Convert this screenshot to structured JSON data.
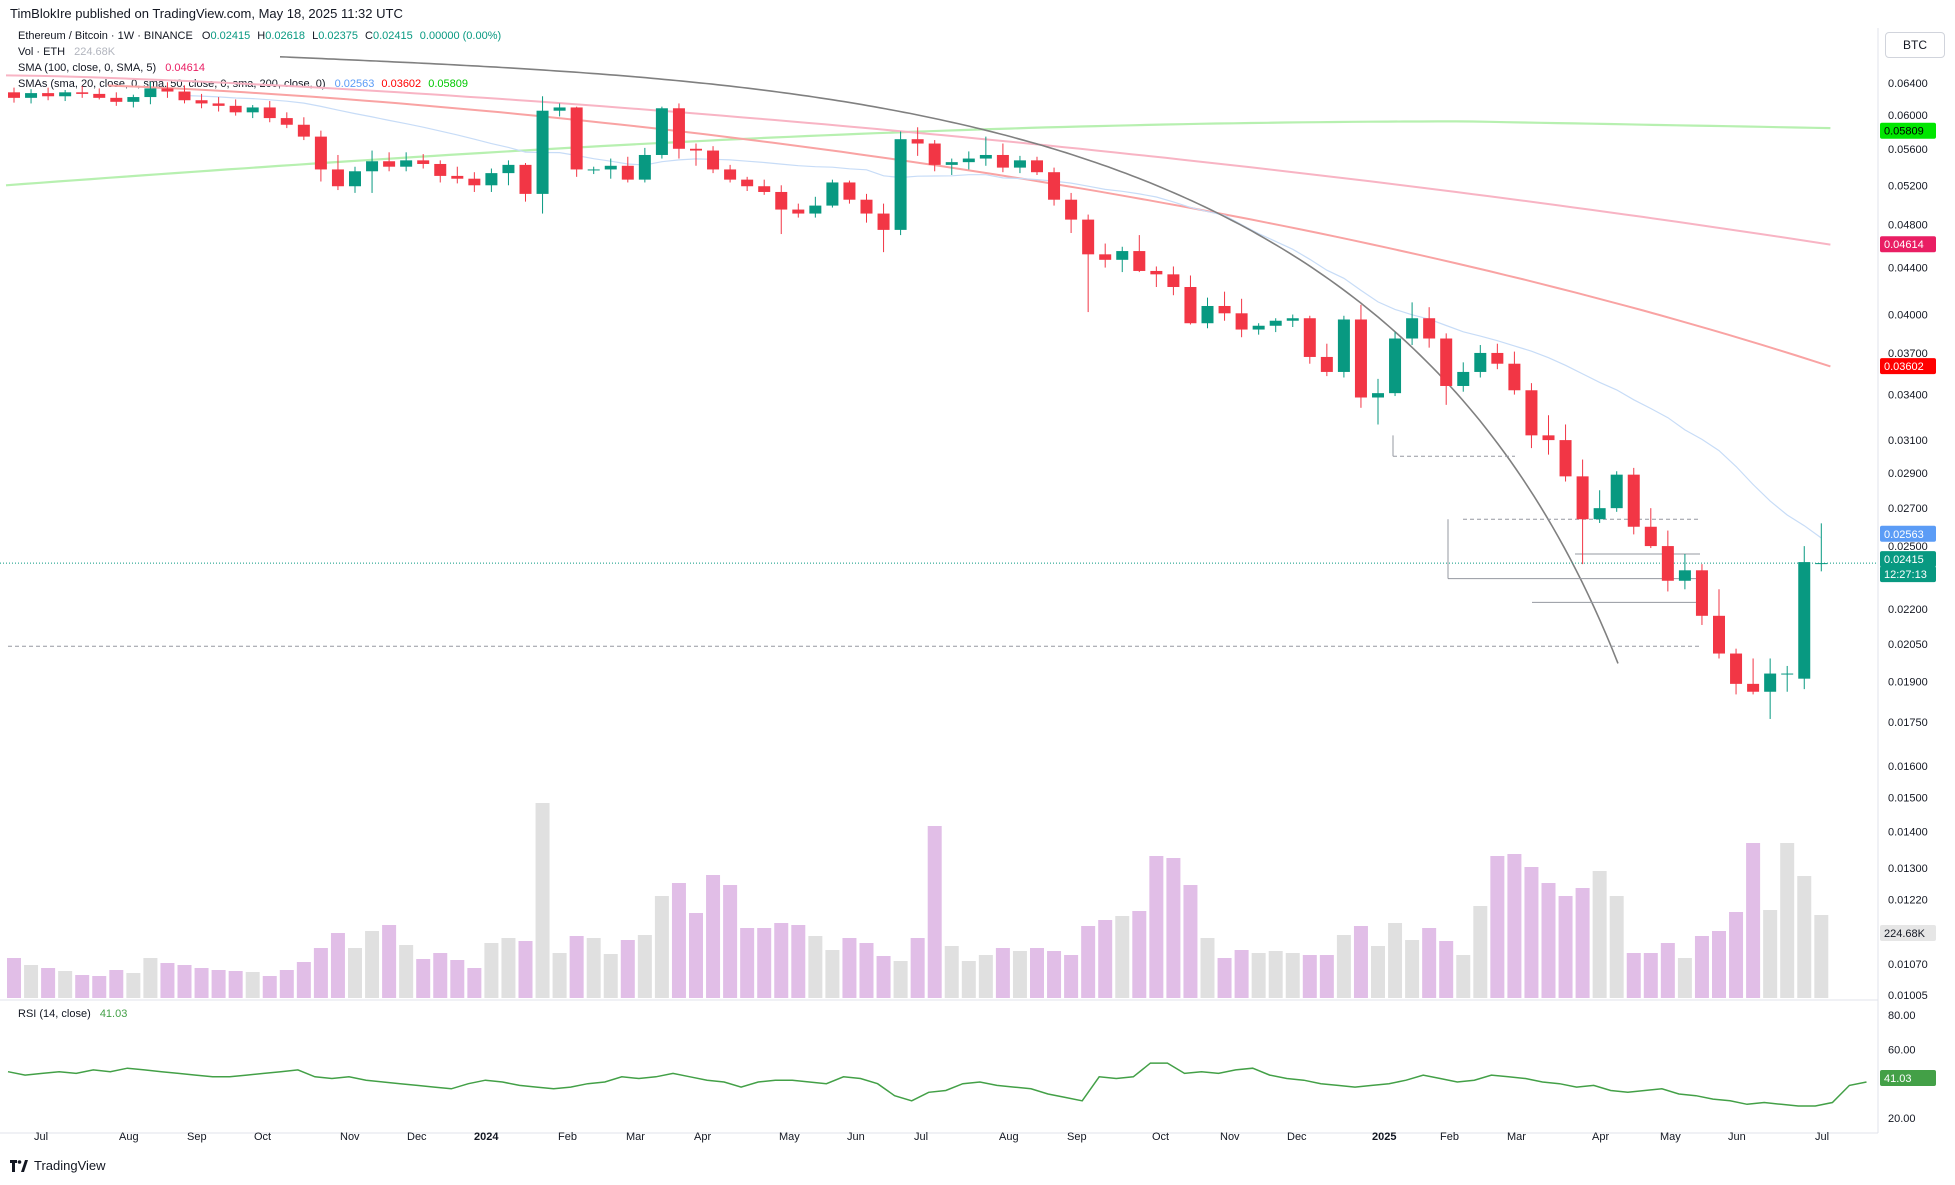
{
  "header": {
    "publish_line": "TimBlokIre published on TradingView.com, May 18, 2025 11:32 UTC"
  },
  "symbol": {
    "title": "Ethereum / Bitcoin · 1W · BINANCE",
    "o_label": "O",
    "o": "0.02415",
    "h_label": "H",
    "h": "0.02618",
    "l_label": "L",
    "l": "0.02375",
    "c_label": "C",
    "c": "0.02415",
    "change": "0.00000 (0.00%)"
  },
  "vol_legend": {
    "label": "Vol · ETH",
    "value": "224.68K"
  },
  "sma_legend": {
    "label": "SMA (100, close, 0, SMA, 5)",
    "value": "0.04614"
  },
  "smas_legend": {
    "label": "SMAs (sma, 20, close, 0, sma, 50, close, 0, sma, 200, close, 0)",
    "v1": "0.02563",
    "v2": "0.03602",
    "v3": "0.05809"
  },
  "rsi_legend": {
    "label": "RSI (14, close)",
    "value": "41.03"
  },
  "currency_button": "BTC",
  "watermark": "TradingView",
  "colors": {
    "up": "#089981",
    "down": "#f23645",
    "sma20": "#5b9cf6",
    "sma50": "#ff0000",
    "sma100": "#e91e63",
    "sma200": "#00e600",
    "rsi": "#43a047",
    "vol_pink": "#e1bee7",
    "vol_grey": "#e0e0e0",
    "arc": "#808080"
  },
  "price_ticks": [
    "0.06400",
    "0.06000",
    "0.05600",
    "0.05200",
    "0.04800",
    "0.04400",
    "0.04000",
    "0.03700",
    "0.03400",
    "0.03100",
    "0.02900",
    "0.02700",
    "0.02500",
    "0.02200",
    "0.02050",
    "0.01900",
    "0.01750",
    "0.01600",
    "0.01500",
    "0.01400",
    "0.01300",
    "0.01220",
    "0.01070",
    "0.01005"
  ],
  "price_badges": [
    {
      "text": "0.05809",
      "color": "#00e600",
      "fg": "#000000"
    },
    {
      "text": "0.04614",
      "color": "#e91e63",
      "fg": "#ffffff"
    },
    {
      "text": "0.03602",
      "color": "#ff0000",
      "fg": "#ffffff"
    },
    {
      "text": "0.02563",
      "color": "#5b9cf6",
      "fg": "#ffffff"
    },
    {
      "text": "0.02415",
      "color": "#089981",
      "fg": "#ffffff"
    },
    {
      "text": "12:27:13",
      "color": "#089981",
      "fg": "#ffffff"
    },
    {
      "text": "224.68K",
      "color": "#e6e6e6",
      "fg": "#131722"
    },
    {
      "text": "41.03",
      "color": "#43a047",
      "fg": "#ffffff"
    }
  ],
  "rsi_ticks": [
    "80.00",
    "60.00",
    "20.00"
  ],
  "time_axis": [
    "Jul",
    "Aug",
    "Sep",
    "Oct",
    "Nov",
    "Dec",
    "2024",
    "Feb",
    "Mar",
    "Apr",
    "May",
    "Jun",
    "Jul",
    "Aug",
    "Sep",
    "Oct",
    "Nov",
    "Dec",
    "2025",
    "Feb",
    "Mar",
    "Apr",
    "May",
    "Jun",
    "Jul"
  ],
  "chart_data": {
    "type": "candlestick",
    "title": "Ethereum / Bitcoin · 1W · BINANCE",
    "ylim": [
      0.01005,
      0.0655
    ],
    "y_scale": "log",
    "candles": [
      {
        "o": 0.0628,
        "h": 0.0634,
        "l": 0.0615,
        "c": 0.0621
      },
      {
        "o": 0.0621,
        "h": 0.0632,
        "l": 0.0614,
        "c": 0.0627
      },
      {
        "o": 0.0627,
        "h": 0.0634,
        "l": 0.0618,
        "c": 0.0623
      },
      {
        "o": 0.0623,
        "h": 0.0631,
        "l": 0.0617,
        "c": 0.0628
      },
      {
        "o": 0.0628,
        "h": 0.0636,
        "l": 0.0621,
        "c": 0.0626
      },
      {
        "o": 0.0626,
        "h": 0.0633,
        "l": 0.0619,
        "c": 0.0621
      },
      {
        "o": 0.0621,
        "h": 0.0628,
        "l": 0.0611,
        "c": 0.0616
      },
      {
        "o": 0.0616,
        "h": 0.0625,
        "l": 0.0609,
        "c": 0.0622
      },
      {
        "o": 0.0622,
        "h": 0.0641,
        "l": 0.0613,
        "c": 0.0633
      },
      {
        "o": 0.0633,
        "h": 0.0641,
        "l": 0.0621,
        "c": 0.0629
      },
      {
        "o": 0.0629,
        "h": 0.0637,
        "l": 0.0614,
        "c": 0.0618
      },
      {
        "o": 0.0618,
        "h": 0.0626,
        "l": 0.0608,
        "c": 0.0614
      },
      {
        "o": 0.0614,
        "h": 0.0622,
        "l": 0.0604,
        "c": 0.0611
      },
      {
        "o": 0.0611,
        "h": 0.0619,
        "l": 0.0599,
        "c": 0.0603
      },
      {
        "o": 0.0603,
        "h": 0.0612,
        "l": 0.0596,
        "c": 0.0609
      },
      {
        "o": 0.0609,
        "h": 0.0617,
        "l": 0.0591,
        "c": 0.0596
      },
      {
        "o": 0.0596,
        "h": 0.0603,
        "l": 0.0584,
        "c": 0.0588
      },
      {
        "o": 0.0588,
        "h": 0.0597,
        "l": 0.057,
        "c": 0.0574
      },
      {
        "o": 0.0574,
        "h": 0.0581,
        "l": 0.0524,
        "c": 0.0537
      },
      {
        "o": 0.0537,
        "h": 0.0553,
        "l": 0.0515,
        "c": 0.0519
      },
      {
        "o": 0.0519,
        "h": 0.054,
        "l": 0.0512,
        "c": 0.0535
      },
      {
        "o": 0.0535,
        "h": 0.0558,
        "l": 0.0512,
        "c": 0.0546
      },
      {
        "o": 0.0546,
        "h": 0.0556,
        "l": 0.0535,
        "c": 0.054
      },
      {
        "o": 0.054,
        "h": 0.0556,
        "l": 0.0535,
        "c": 0.0547
      },
      {
        "o": 0.0547,
        "h": 0.0554,
        "l": 0.0538,
        "c": 0.0543
      },
      {
        "o": 0.0543,
        "h": 0.0547,
        "l": 0.0523,
        "c": 0.053
      },
      {
        "o": 0.053,
        "h": 0.054,
        "l": 0.0522,
        "c": 0.0527
      },
      {
        "o": 0.0527,
        "h": 0.0534,
        "l": 0.0513,
        "c": 0.052
      },
      {
        "o": 0.052,
        "h": 0.0538,
        "l": 0.0513,
        "c": 0.0533
      },
      {
        "o": 0.0533,
        "h": 0.0547,
        "l": 0.052,
        "c": 0.0542
      },
      {
        "o": 0.0542,
        "h": 0.0544,
        "l": 0.0503,
        "c": 0.0511
      },
      {
        "o": 0.0511,
        "h": 0.0623,
        "l": 0.0491,
        "c": 0.0605
      },
      {
        "o": 0.0605,
        "h": 0.0614,
        "l": 0.0598,
        "c": 0.0609
      },
      {
        "o": 0.0609,
        "h": 0.061,
        "l": 0.0529,
        "c": 0.0537
      },
      {
        "o": 0.0537,
        "h": 0.054,
        "l": 0.0532,
        "c": 0.0537
      },
      {
        "o": 0.0537,
        "h": 0.0549,
        "l": 0.0527,
        "c": 0.0541
      },
      {
        "o": 0.0541,
        "h": 0.0551,
        "l": 0.0523,
        "c": 0.0526
      },
      {
        "o": 0.0526,
        "h": 0.0561,
        "l": 0.0523,
        "c": 0.0553
      },
      {
        "o": 0.0553,
        "h": 0.061,
        "l": 0.0549,
        "c": 0.0608
      },
      {
        "o": 0.0608,
        "h": 0.0614,
        "l": 0.0549,
        "c": 0.056
      },
      {
        "o": 0.056,
        "h": 0.0566,
        "l": 0.0541,
        "c": 0.0558
      },
      {
        "o": 0.0558,
        "h": 0.0563,
        "l": 0.0533,
        "c": 0.0537
      },
      {
        "o": 0.0537,
        "h": 0.0542,
        "l": 0.0523,
        "c": 0.0526
      },
      {
        "o": 0.0526,
        "h": 0.0529,
        "l": 0.0514,
        "c": 0.0519
      },
      {
        "o": 0.0519,
        "h": 0.0526,
        "l": 0.051,
        "c": 0.0513
      },
      {
        "o": 0.0513,
        "h": 0.052,
        "l": 0.0471,
        "c": 0.0495
      },
      {
        "o": 0.0495,
        "h": 0.0501,
        "l": 0.0487,
        "c": 0.0491
      },
      {
        "o": 0.0491,
        "h": 0.0508,
        "l": 0.0487,
        "c": 0.0499
      },
      {
        "o": 0.0499,
        "h": 0.0526,
        "l": 0.0497,
        "c": 0.0523
      },
      {
        "o": 0.0523,
        "h": 0.0525,
        "l": 0.0501,
        "c": 0.0505
      },
      {
        "o": 0.0505,
        "h": 0.0511,
        "l": 0.0482,
        "c": 0.0491
      },
      {
        "o": 0.0491,
        "h": 0.0501,
        "l": 0.0454,
        "c": 0.0475
      },
      {
        "o": 0.0475,
        "h": 0.058,
        "l": 0.047,
        "c": 0.0571
      },
      {
        "o": 0.0571,
        "h": 0.0585,
        "l": 0.0552,
        "c": 0.0566
      },
      {
        "o": 0.0566,
        "h": 0.057,
        "l": 0.0535,
        "c": 0.0542
      },
      {
        "o": 0.0542,
        "h": 0.0549,
        "l": 0.0531,
        "c": 0.0545
      },
      {
        "o": 0.0545,
        "h": 0.0557,
        "l": 0.0537,
        "c": 0.0549
      },
      {
        "o": 0.0549,
        "h": 0.0574,
        "l": 0.0541,
        "c": 0.0553
      },
      {
        "o": 0.0553,
        "h": 0.0566,
        "l": 0.0534,
        "c": 0.0539
      },
      {
        "o": 0.0539,
        "h": 0.0552,
        "l": 0.0533,
        "c": 0.0547
      },
      {
        "o": 0.0547,
        "h": 0.0551,
        "l": 0.0531,
        "c": 0.0534
      },
      {
        "o": 0.0534,
        "h": 0.0539,
        "l": 0.0499,
        "c": 0.0505
      },
      {
        "o": 0.0505,
        "h": 0.0512,
        "l": 0.0472,
        "c": 0.0485
      },
      {
        "o": 0.0485,
        "h": 0.049,
        "l": 0.0402,
        "c": 0.0452
      },
      {
        "o": 0.0452,
        "h": 0.0462,
        "l": 0.044,
        "c": 0.0447
      },
      {
        "o": 0.0447,
        "h": 0.0459,
        "l": 0.0436,
        "c": 0.0455
      },
      {
        "o": 0.0455,
        "h": 0.047,
        "l": 0.0436,
        "c": 0.0437
      },
      {
        "o": 0.0437,
        "h": 0.0441,
        "l": 0.0423,
        "c": 0.0434
      },
      {
        "o": 0.0434,
        "h": 0.0441,
        "l": 0.0416,
        "c": 0.0423
      },
      {
        "o": 0.0423,
        "h": 0.0433,
        "l": 0.0392,
        "c": 0.0393
      },
      {
        "o": 0.0393,
        "h": 0.0414,
        "l": 0.0389,
        "c": 0.0407
      },
      {
        "o": 0.0407,
        "h": 0.0419,
        "l": 0.0395,
        "c": 0.0401
      },
      {
        "o": 0.0401,
        "h": 0.0413,
        "l": 0.0382,
        "c": 0.0388
      },
      {
        "o": 0.0388,
        "h": 0.0393,
        "l": 0.0384,
        "c": 0.0391
      },
      {
        "o": 0.0391,
        "h": 0.0397,
        "l": 0.0386,
        "c": 0.0395
      },
      {
        "o": 0.0395,
        "h": 0.04,
        "l": 0.039,
        "c": 0.0397
      },
      {
        "o": 0.0397,
        "h": 0.0399,
        "l": 0.0362,
        "c": 0.0367
      },
      {
        "o": 0.0367,
        "h": 0.0377,
        "l": 0.0353,
        "c": 0.0356
      },
      {
        "o": 0.0356,
        "h": 0.0399,
        "l": 0.0352,
        "c": 0.0396
      },
      {
        "o": 0.0396,
        "h": 0.0408,
        "l": 0.0331,
        "c": 0.0338
      },
      {
        "o": 0.0338,
        "h": 0.0351,
        "l": 0.032,
        "c": 0.0341
      },
      {
        "o": 0.0341,
        "h": 0.0386,
        "l": 0.0339,
        "c": 0.0381
      },
      {
        "o": 0.0381,
        "h": 0.041,
        "l": 0.0376,
        "c": 0.0397
      },
      {
        "o": 0.0397,
        "h": 0.0406,
        "l": 0.0374,
        "c": 0.0381
      },
      {
        "o": 0.0381,
        "h": 0.0385,
        "l": 0.0333,
        "c": 0.0346
      },
      {
        "o": 0.0346,
        "h": 0.0363,
        "l": 0.0342,
        "c": 0.0356
      },
      {
        "o": 0.0356,
        "h": 0.0376,
        "l": 0.0352,
        "c": 0.037
      },
      {
        "o": 0.037,
        "h": 0.0377,
        "l": 0.0358,
        "c": 0.0362
      },
      {
        "o": 0.0362,
        "h": 0.0371,
        "l": 0.034,
        "c": 0.0343
      },
      {
        "o": 0.0343,
        "h": 0.0348,
        "l": 0.0305,
        "c": 0.0313
      },
      {
        "o": 0.0313,
        "h": 0.0326,
        "l": 0.0301,
        "c": 0.031
      },
      {
        "o": 0.031,
        "h": 0.032,
        "l": 0.0285,
        "c": 0.0288
      },
      {
        "o": 0.0288,
        "h": 0.0298,
        "l": 0.0241,
        "c": 0.0264
      },
      {
        "o": 0.0264,
        "h": 0.028,
        "l": 0.0262,
        "c": 0.027
      },
      {
        "o": 0.027,
        "h": 0.0291,
        "l": 0.0268,
        "c": 0.0289
      },
      {
        "o": 0.0289,
        "h": 0.0293,
        "l": 0.0256,
        "c": 0.026
      },
      {
        "o": 0.026,
        "h": 0.027,
        "l": 0.0249,
        "c": 0.025
      },
      {
        "o": 0.025,
        "h": 0.0258,
        "l": 0.0228,
        "c": 0.0233
      },
      {
        "o": 0.0233,
        "h": 0.0246,
        "l": 0.0229,
        "c": 0.0238
      },
      {
        "o": 0.0238,
        "h": 0.0241,
        "l": 0.0213,
        "c": 0.0217
      },
      {
        "o": 0.0217,
        "h": 0.0229,
        "l": 0.0199,
        "c": 0.0201
      },
      {
        "o": 0.0201,
        "h": 0.0203,
        "l": 0.0185,
        "c": 0.0189
      },
      {
        "o": 0.0189,
        "h": 0.0199,
        "l": 0.0185,
        "c": 0.0186
      },
      {
        "o": 0.0186,
        "h": 0.0199,
        "l": 0.0176,
        "c": 0.0193
      },
      {
        "o": 0.0193,
        "h": 0.0196,
        "l": 0.0186,
        "c": 0.0193
      },
      {
        "o": 0.0191,
        "h": 0.025,
        "l": 0.0187,
        "c": 0.0242
      },
      {
        "o": 0.02415,
        "h": 0.02618,
        "l": 0.02375,
        "c": 0.02415
      }
    ],
    "volume_colors": "pink = down week, grey = up week",
    "rsi": [
      47,
      45,
      46,
      47,
      46,
      48,
      47,
      49,
      48,
      47,
      46,
      45,
      44,
      44,
      45,
      46,
      47,
      48,
      44,
      43,
      44,
      42,
      41,
      40,
      39,
      38,
      37,
      40,
      42,
      41,
      39,
      38,
      37,
      38,
      40,
      41,
      44,
      43,
      44,
      46,
      44,
      42,
      41,
      38,
      41,
      42,
      42,
      41,
      40,
      44,
      43,
      40,
      33,
      30,
      35,
      36,
      40,
      41,
      39,
      38,
      37,
      34,
      32,
      30,
      44,
      43,
      44,
      52,
      52,
      46,
      47,
      46,
      48,
      49,
      45,
      43,
      42,
      40,
      39,
      38,
      39,
      40,
      42,
      45,
      43,
      41,
      42,
      45,
      44,
      43,
      41,
      40,
      38,
      39,
      36,
      35,
      36,
      37,
      34,
      33,
      31,
      30,
      28,
      29,
      28,
      27,
      27,
      29,
      39,
      41
    ],
    "volume_approx": "relative bar heights; last 224.68K",
    "sma_values_latest": {
      "sma20": 0.02563,
      "sma50": 0.03602,
      "sma100": 0.04614,
      "sma200": 0.05809
    }
  }
}
